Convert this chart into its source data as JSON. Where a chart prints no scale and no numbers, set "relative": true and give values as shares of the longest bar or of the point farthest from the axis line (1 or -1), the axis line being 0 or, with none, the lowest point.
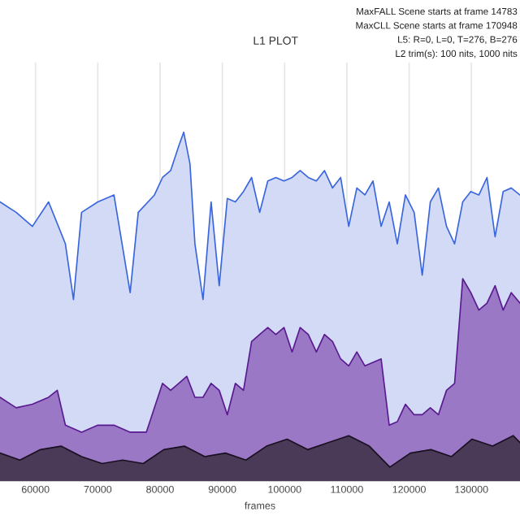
{
  "chart_data": {
    "type": "area",
    "title": "L1 PLOT",
    "xlabel": "frames",
    "relative": true,
    "grid": "x",
    "annotations": [
      "MaxFALL Scene starts at frame 14783",
      "MaxCLL Scene starts at frame 170948",
      "L5: R=0, L=0, T=276, B=276",
      "L2 trim(s): 100 nits, 1000 nits"
    ],
    "xlim": [
      54300,
      137800
    ],
    "xticks": [
      60000,
      70000,
      80000,
      90000,
      100000,
      110000,
      120000,
      130000
    ],
    "series": [
      {
        "color": "#3a66dd",
        "x": [
          54300,
          56900,
          59500,
          62100,
          64800,
          66100,
          67400,
          70000,
          72600,
          75200,
          76500,
          79100,
          80400,
          81700,
          83000,
          83800,
          84800,
          85600,
          86900,
          88200,
          89500,
          90800,
          92100,
          93400,
          94700,
          96000,
          97300,
          98600,
          99900,
          101200,
          102500,
          103800,
          105100,
          106400,
          107700,
          109000,
          110300,
          111600,
          112900,
          114200,
          115500,
          116800,
          118100,
          119400,
          120800,
          122100,
          123400,
          124700,
          126000,
          127300,
          128600,
          129900,
          131200,
          132500,
          133800,
          135100,
          136400,
          137800
        ],
        "values": [
          0.8,
          0.77,
          0.73,
          0.8,
          0.68,
          0.52,
          0.77,
          0.8,
          0.82,
          0.54,
          0.77,
          0.82,
          0.87,
          0.89,
          0.96,
          1.0,
          0.91,
          0.68,
          0.52,
          0.8,
          0.56,
          0.81,
          0.8,
          0.83,
          0.87,
          0.77,
          0.86,
          0.87,
          0.86,
          0.87,
          0.89,
          0.87,
          0.86,
          0.89,
          0.84,
          0.87,
          0.73,
          0.84,
          0.82,
          0.86,
          0.73,
          0.8,
          0.68,
          0.82,
          0.77,
          0.59,
          0.8,
          0.84,
          0.73,
          0.68,
          0.8,
          0.83,
          0.82,
          0.87,
          0.7,
          0.83,
          0.84,
          0.82
        ]
      },
      {
        "color": "#5a1a90",
        "x": [
          54300,
          56900,
          59500,
          62100,
          63500,
          64800,
          67400,
          70000,
          72600,
          75200,
          77800,
          79100,
          80400,
          81700,
          83000,
          84300,
          85600,
          86900,
          88200,
          89500,
          90800,
          92100,
          93400,
          94700,
          96000,
          97300,
          98600,
          99900,
          101200,
          102500,
          103800,
          105100,
          106400,
          107700,
          109000,
          110300,
          111600,
          112900,
          114200,
          115500,
          116800,
          118100,
          119400,
          120800,
          122100,
          123400,
          124700,
          126000,
          127300,
          128600,
          129900,
          131200,
          132500,
          133800,
          135100,
          136400,
          137800
        ],
        "values": [
          0.24,
          0.21,
          0.22,
          0.24,
          0.26,
          0.16,
          0.14,
          0.16,
          0.16,
          0.14,
          0.14,
          0.21,
          0.28,
          0.26,
          0.28,
          0.3,
          0.24,
          0.24,
          0.28,
          0.26,
          0.19,
          0.28,
          0.26,
          0.4,
          0.42,
          0.44,
          0.42,
          0.44,
          0.37,
          0.44,
          0.42,
          0.37,
          0.42,
          0.4,
          0.35,
          0.33,
          0.37,
          0.33,
          0.34,
          0.35,
          0.16,
          0.17,
          0.22,
          0.19,
          0.19,
          0.21,
          0.19,
          0.26,
          0.28,
          0.58,
          0.54,
          0.49,
          0.51,
          0.56,
          0.49,
          0.54,
          0.51
        ]
      },
      {
        "color": "#1a1020",
        "x": [
          54300,
          57500,
          60800,
          64100,
          67400,
          70700,
          74000,
          77300,
          80600,
          83900,
          87200,
          90500,
          93800,
          97100,
          100400,
          103700,
          107000,
          110300,
          113600,
          116900,
          120200,
          123500,
          126800,
          130100,
          133400,
          136700,
          137800
        ],
        "values": [
          0.08,
          0.06,
          0.09,
          0.1,
          0.07,
          0.05,
          0.06,
          0.05,
          0.09,
          0.1,
          0.07,
          0.08,
          0.06,
          0.1,
          0.12,
          0.09,
          0.11,
          0.13,
          0.1,
          0.04,
          0.08,
          0.09,
          0.07,
          0.12,
          0.1,
          0.13,
          0.11
        ]
      }
    ]
  }
}
